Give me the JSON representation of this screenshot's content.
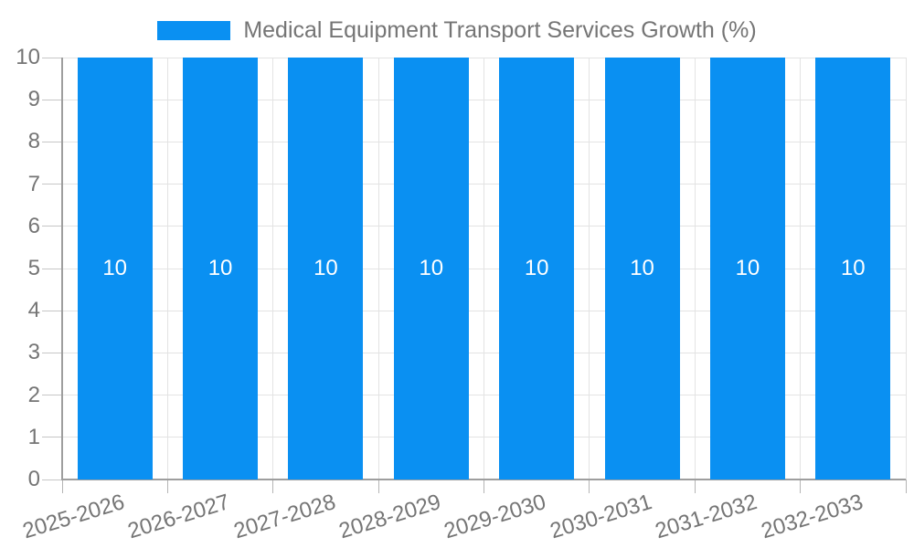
{
  "chart_data": {
    "type": "bar",
    "title": "",
    "legend": {
      "label": "Medical Equipment Transport Services Growth (%)",
      "position": "top-center"
    },
    "categories": [
      "2025-2026",
      "2026-2027",
      "2027-2028",
      "2028-2029",
      "2029-2030",
      "2030-2031",
      "2031-2032",
      "2032-2033"
    ],
    "series": [
      {
        "name": "Medical Equipment Transport Services Growth (%)",
        "values": [
          10,
          10,
          10,
          10,
          10,
          10,
          10,
          10
        ]
      }
    ],
    "bar_value_labels": [
      "10",
      "10",
      "10",
      "10",
      "10",
      "10",
      "10",
      "10"
    ],
    "xlabel": "",
    "ylabel": "",
    "ylim": [
      0,
      10
    ],
    "ytick_labels": [
      "0",
      "1",
      "2",
      "3",
      "4",
      "5",
      "6",
      "7",
      "8",
      "9",
      "10"
    ],
    "grid": {
      "horizontal": true,
      "vertical": true
    },
    "x_label_rotation_deg": -17,
    "colors": {
      "bar": "#0a90f2",
      "axis": "#9e9e9e",
      "grid": "#e3e3e3",
      "y_tick": "#c6c6c6",
      "x_tick": "#b5b5b5",
      "axis_label": "#757575",
      "legend_text": "#757575",
      "value_label": "#ffffff",
      "background": "#ffffff"
    }
  }
}
